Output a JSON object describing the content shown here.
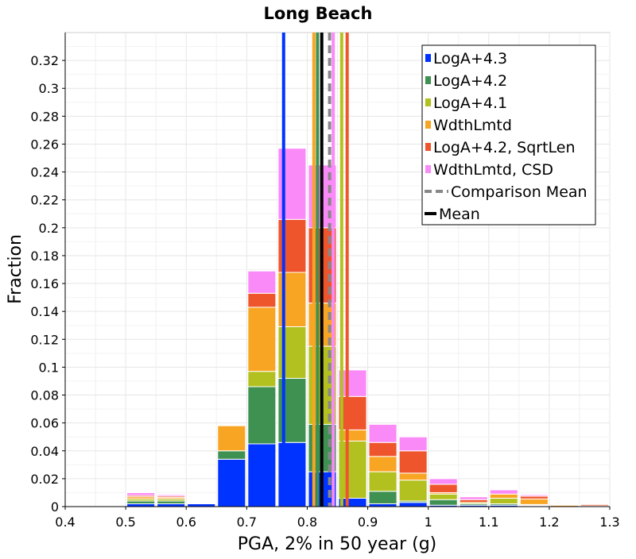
{
  "chart_data": {
    "type": "bar",
    "stacked": true,
    "title": "Long Beach",
    "xlabel": "PGA, 2% in 50 year (g)",
    "ylabel": "Fraction",
    "xlim": [
      0.4,
      1.3
    ],
    "ylim": [
      0,
      0.34
    ],
    "xticks": [
      0.4,
      0.5,
      0.6,
      0.7,
      0.8,
      0.9,
      1.0,
      1.1,
      1.2,
      1.3
    ],
    "xtick_labels": [
      "0.4",
      "0.5",
      "0.6",
      "0.7",
      "0.8",
      "0.9",
      "1",
      "1.1",
      "1.2",
      "1.3"
    ],
    "yticks": [
      0,
      0.02,
      0.04,
      0.06,
      0.08,
      0.1,
      0.12,
      0.14,
      0.16,
      0.18,
      0.2,
      0.22,
      0.24,
      0.26,
      0.28,
      0.3,
      0.32
    ],
    "ytick_labels": [
      "0",
      "0.02",
      "0.04",
      "0.06",
      "0.08",
      "0.1",
      "0.12",
      "0.14",
      "0.16",
      "0.18",
      "0.2",
      "0.22",
      "0.24",
      "0.26",
      "0.28",
      "0.3",
      "0.32"
    ],
    "grid": true,
    "legend_position": "top-right",
    "bin_width": 0.05,
    "bin_centers": [
      0.475,
      0.525,
      0.575,
      0.625,
      0.675,
      0.725,
      0.775,
      0.825,
      0.875,
      0.925,
      0.975,
      1.025,
      1.075,
      1.125,
      1.175,
      1.225,
      1.275
    ],
    "series": [
      {
        "name": "LogA+4.3",
        "color": "#0033ff",
        "values": [
          0,
          0.002,
          0.002,
          0.002,
          0.034,
          0.045,
          0.046,
          0.025,
          0.006,
          0.002,
          0.003,
          0.001,
          0.001,
          0.001,
          0.0005,
          0,
          0
        ]
      },
      {
        "name": "LogA+4.2",
        "color": "#3f9151",
        "values": [
          0,
          0.002,
          0.002,
          0.0005,
          0.006,
          0.041,
          0.046,
          0.034,
          0.0,
          0.009,
          0.001,
          0.004,
          0.001,
          0.001,
          0.0005,
          0,
          0
        ]
      },
      {
        "name": "LogA+4.1",
        "color": "#b2c11f",
        "values": [
          0,
          0.0015,
          0.0015,
          0,
          0,
          0.011,
          0.037,
          0.056,
          0.041,
          0.014,
          0.015,
          0.004,
          0.001,
          0.004,
          0.0005,
          0,
          0
        ]
      },
      {
        "name": "WdthLmtd",
        "color": "#f8a524",
        "values": [
          0,
          0.0015,
          0.001,
          0,
          0.018,
          0.046,
          0.039,
          0.031,
          0.008,
          0.011,
          0.005,
          0.001,
          0,
          0.003,
          0.004,
          0.001,
          0.0005
        ]
      },
      {
        "name": "LogA+4.2, SqrtLen",
        "color": "#ef552c",
        "values": [
          0.0005,
          0.001,
          0.001,
          0.0005,
          0,
          0.01,
          0.038,
          0.054,
          0.024,
          0.01,
          0.016,
          0.006,
          0.002,
          0,
          0.002,
          0.0005,
          0.001
        ]
      },
      {
        "name": "WdthLmtd, CSD",
        "color": "#fb8af9",
        "values": [
          0.0005,
          0.002,
          0.001,
          0.0005,
          0,
          0.016,
          0.051,
          0.045,
          0.019,
          0.013,
          0.01,
          0.004,
          0.002,
          0.003,
          0.001,
          0.0005,
          0
        ]
      }
    ],
    "vertical_lines": [
      {
        "name": "LogA+4.3",
        "x": 0.761,
        "color": "#0033ff",
        "style": "solid"
      },
      {
        "name": "WdthLmtd",
        "x": 0.811,
        "color": "#f8a524",
        "style": "solid"
      },
      {
        "name": "LogA+4.2",
        "x": 0.817,
        "color": "#3f9151",
        "style": "solid"
      },
      {
        "name": "Mean",
        "x": 0.824,
        "color": "#000000",
        "style": "solid"
      },
      {
        "name": "Comparison Mean",
        "x": 0.837,
        "color": "#888888",
        "style": "dashed"
      },
      {
        "name": "WdthLmtd, CSD",
        "x": 0.843,
        "color": "#fb8af9",
        "style": "solid"
      },
      {
        "name": "LogA+4.1",
        "x": 0.857,
        "color": "#b2c11f",
        "style": "solid"
      },
      {
        "name": "LogA+4.2, SqrtLen",
        "x": 0.866,
        "color": "#ef552c",
        "style": "solid"
      }
    ],
    "legend": [
      {
        "label": "LogA+4.3",
        "color": "#0033ff",
        "kind": "square"
      },
      {
        "label": "LogA+4.2",
        "color": "#3f9151",
        "kind": "square"
      },
      {
        "label": "LogA+4.1",
        "color": "#b2c11f",
        "kind": "square"
      },
      {
        "label": "WdthLmtd",
        "color": "#f8a524",
        "kind": "square"
      },
      {
        "label": "LogA+4.2, SqrtLen",
        "color": "#ef552c",
        "kind": "square"
      },
      {
        "label": "WdthLmtd, CSD",
        "color": "#fb8af9",
        "kind": "square"
      },
      {
        "label": "Comparison Mean",
        "color": "#888888",
        "kind": "dashed"
      },
      {
        "label": "Mean",
        "color": "#000000",
        "kind": "line"
      }
    ]
  }
}
